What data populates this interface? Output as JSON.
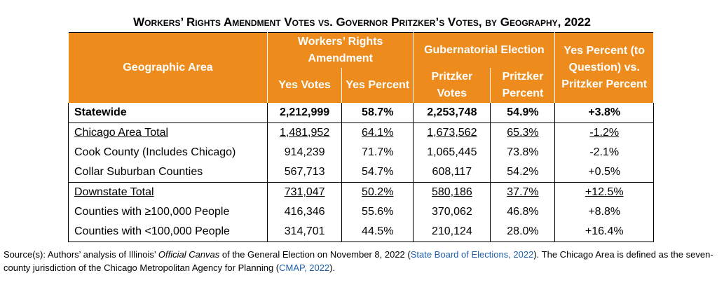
{
  "title": "Workers’ Rights Amendment Votes vs. Governor Pritzker’s Votes, by Geography, 2022",
  "table": {
    "headers": [
      "Geographic Area",
      "Workers’ Rights Amendment",
      "Gubernatorial Election",
      "Yes Percent (to Question) vs. Pritzker Percent"
    ],
    "subheaders": [
      "Yes Votes",
      "Yes Percent",
      "Pritzker Votes",
      "Pritzker Percent"
    ],
    "rows": [
      [
        "Statewide",
        "2,212,999",
        "58.7%",
        "2,253,748",
        "54.9%",
        "+3.8%"
      ],
      [
        "Chicago Area Total",
        "1,481,952",
        "64.1%",
        "1,673,562",
        "65.3%",
        "-1.2%"
      ],
      [
        "Cook County (Includes Chicago)",
        "914,239",
        "71.7%",
        "1,065,445",
        "73.8%",
        "-2.1%"
      ],
      [
        "Collar Suburban Counties",
        "567,713",
        "54.7%",
        "608,117",
        "54.2%",
        "+0.5%"
      ],
      [
        "Downstate Total",
        "731,047",
        "50.2%",
        "580,186",
        "37.7%",
        "+12.5%"
      ],
      [
        "Counties with ≥100,000 People",
        "416,346",
        "55.6%",
        "370,062",
        "46.8%",
        "+8.8%"
      ],
      [
        "Counties with <100,000 People",
        "314,701",
        "44.5%",
        "210,124",
        "28.0%",
        "+16.4%"
      ]
    ]
  },
  "source": [
    "Source(s): Authors’ analysis of Illinois’ ",
    "Official Canvas",
    " of the General Election on November 8, 2022 (",
    "State Board of Elections, 2022",
    "). The Chicago Area is defined as the seven-county jurisdiction of the Chicago Metropolitan Agency for Planning (",
    "CMAP, 2022",
    ")."
  ]
}
